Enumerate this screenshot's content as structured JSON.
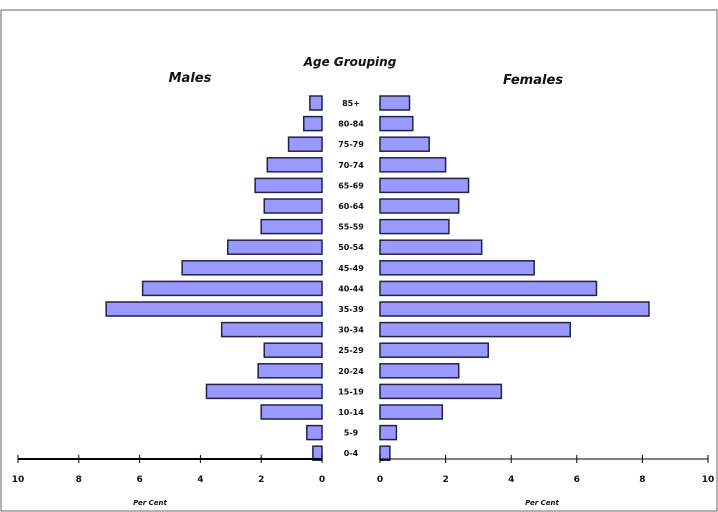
{
  "chart_data": {
    "type": "bar",
    "title": "Age Grouping",
    "categories": [
      "0-4",
      "5-9",
      "10-14",
      "15-19",
      "20-24",
      "25-29",
      "30-34",
      "35-39",
      "40-44",
      "45-49",
      "50-54",
      "55-59",
      "60-64",
      "65-69",
      "70-74",
      "75-79",
      "80-84",
      "85+"
    ],
    "series": [
      {
        "name": "Males",
        "values": [
          0.3,
          0.5,
          2.0,
          3.8,
          2.1,
          1.9,
          3.3,
          7.1,
          5.9,
          4.6,
          3.1,
          2.0,
          1.9,
          2.2,
          1.8,
          1.1,
          0.6,
          0.4
        ]
      },
      {
        "name": "Females",
        "values": [
          0.3,
          0.5,
          1.9,
          3.7,
          2.4,
          3.3,
          5.8,
          8.2,
          6.6,
          4.7,
          3.1,
          2.1,
          2.4,
          2.7,
          2.0,
          1.5,
          1.0,
          0.9
        ]
      }
    ],
    "xlabel": "Per Cent",
    "xlim": [
      0,
      10
    ],
    "ticks": [
      "0",
      "2",
      "4",
      "6",
      "8",
      "10"
    ],
    "ticks_left": [
      "10",
      "8",
      "6",
      "4",
      "2",
      "0"
    ],
    "grid": false,
    "colors": {
      "bar_fill": "#9999ff",
      "bar_edge": "#222244",
      "axis": "#000000"
    }
  }
}
